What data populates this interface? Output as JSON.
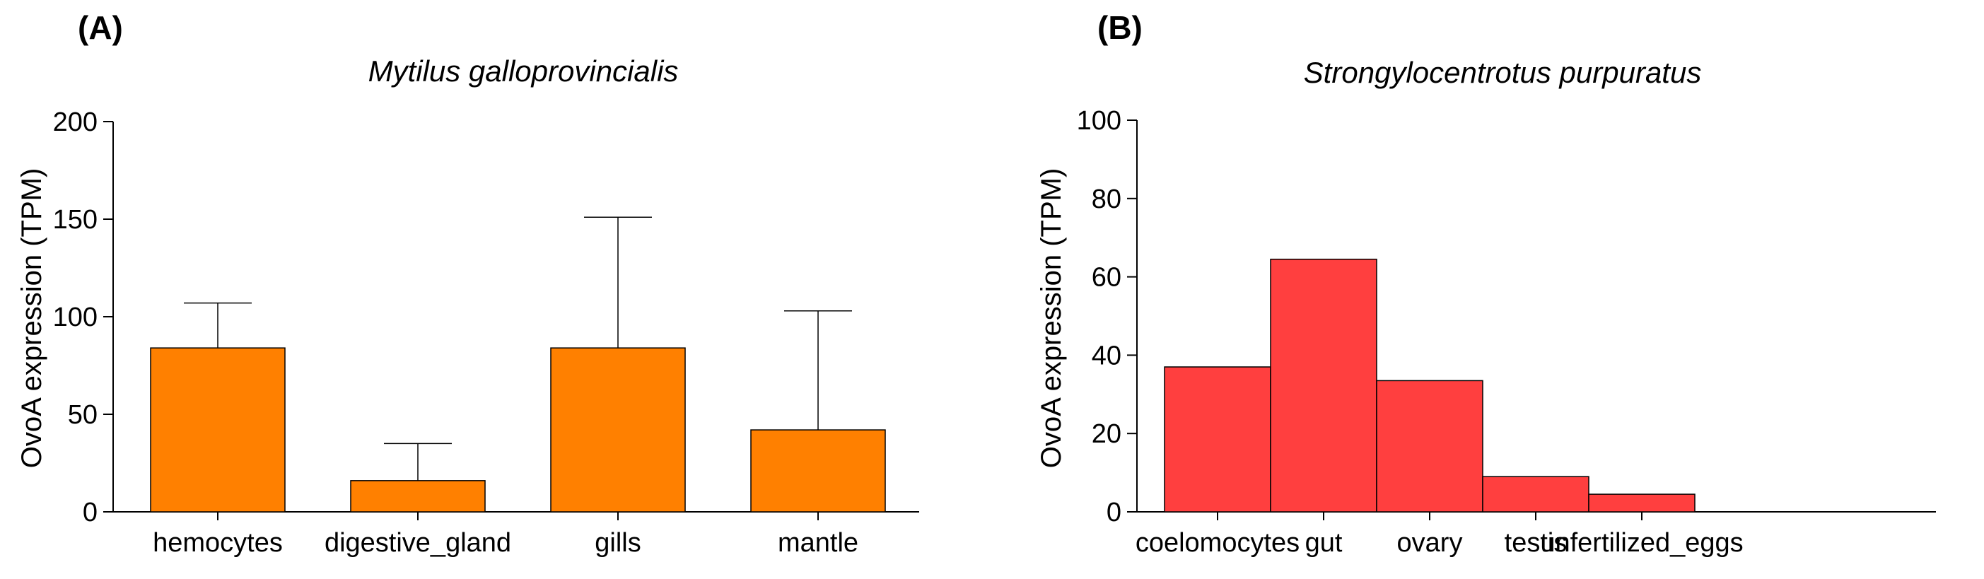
{
  "chart_data": [
    {
      "panel_label": "(A)",
      "type": "bar",
      "title": "Mytilus galloprovincialis",
      "xlabel": "",
      "ylabel": "OvoA expression (TPM)",
      "ylim": [
        0,
        200
      ],
      "yticks": [
        0,
        50,
        100,
        150,
        200
      ],
      "categories": [
        "hemocytes",
        "digestive_gland",
        "gills",
        "mantle"
      ],
      "values": [
        84,
        16,
        84,
        42
      ],
      "error_upper": [
        107,
        35,
        151,
        103
      ],
      "color": "#ff8000",
      "grid": false
    },
    {
      "panel_label": "(B)",
      "type": "bar",
      "title": "Strongylocentrotus purpuratus",
      "xlabel": "",
      "ylabel": "OvoA expression (TPM)",
      "ylim": [
        0,
        100
      ],
      "yticks": [
        0,
        20,
        40,
        60,
        80,
        100
      ],
      "categories": [
        "coelomocytes",
        "gut",
        "ovary",
        "testis",
        "unfertilized_eggs"
      ],
      "values": [
        37,
        64.5,
        33.5,
        9,
        4.5
      ],
      "color": "#ff3f3f",
      "grid": false
    }
  ]
}
